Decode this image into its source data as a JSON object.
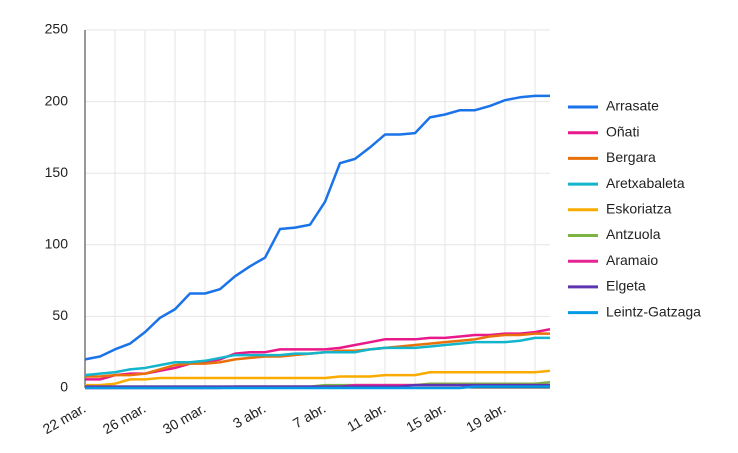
{
  "chart_data": {
    "type": "line",
    "categories": [
      "22 mar.",
      null,
      null,
      null,
      "26 mar.",
      null,
      null,
      null,
      "30 mar.",
      null,
      null,
      null,
      "3 abr.",
      null,
      null,
      null,
      "7 abr.",
      null,
      null,
      null,
      "11 abr.",
      null,
      null,
      null,
      "15 abr.",
      null,
      null,
      null,
      "19 abr.",
      null,
      null,
      null
    ],
    "ylim": [
      0,
      250
    ],
    "yticks": [
      0,
      50,
      100,
      150,
      200,
      250
    ],
    "grid": true,
    "legend": "right",
    "series": [
      {
        "name": "Arrasate",
        "color": "#1a73e8",
        "values": [
          20,
          22,
          27,
          31,
          39,
          49,
          55,
          66,
          66,
          69,
          78,
          85,
          91,
          111,
          112,
          114,
          130,
          157,
          160,
          168,
          177,
          177,
          178,
          189,
          191,
          194,
          194,
          197,
          201,
          203,
          204,
          204
        ]
      },
      {
        "name": "Oñati",
        "color": "#e8198b",
        "values": [
          6,
          6,
          9,
          10,
          10,
          12,
          14,
          17,
          18,
          20,
          24,
          25,
          25,
          27,
          27,
          27,
          27,
          28,
          30,
          32,
          34,
          34,
          34,
          35,
          35,
          36,
          37,
          37,
          38,
          38,
          39,
          41
        ]
      },
      {
        "name": "Bergara",
        "color": "#e8710a",
        "values": [
          8,
          8,
          9,
          9,
          10,
          13,
          16,
          17,
          17,
          18,
          20,
          21,
          22,
          22,
          23,
          24,
          25,
          26,
          26,
          27,
          28,
          29,
          30,
          31,
          32,
          33,
          34,
          36,
          37,
          37,
          38,
          38
        ]
      },
      {
        "name": "Aretxabaleta",
        "color": "#12b5cb",
        "values": [
          9,
          10,
          11,
          13,
          14,
          16,
          18,
          18,
          19,
          21,
          23,
          23,
          23,
          23,
          24,
          24,
          25,
          25,
          25,
          27,
          28,
          28,
          28,
          29,
          30,
          31,
          32,
          32,
          32,
          33,
          35,
          35
        ]
      },
      {
        "name": "Eskoriatza",
        "color": "#f9ab00",
        "values": [
          2,
          2,
          3,
          6,
          6,
          7,
          7,
          7,
          7,
          7,
          7,
          7,
          7,
          7,
          7,
          7,
          7,
          8,
          8,
          8,
          9,
          9,
          9,
          11,
          11,
          11,
          11,
          11,
          11,
          11,
          11,
          12
        ]
      },
      {
        "name": "Antzuola",
        "color": "#7cb342",
        "values": [
          1,
          1,
          1,
          1,
          1,
          1,
          1,
          1,
          1,
          1,
          1,
          1,
          1,
          1,
          1,
          1,
          2,
          2,
          2,
          2,
          2,
          2,
          2,
          3,
          3,
          3,
          3,
          3,
          3,
          3,
          3,
          4
        ]
      },
      {
        "name": "Aramaio",
        "color": "#e52592",
        "values": [
          0,
          0,
          0,
          0,
          0,
          0,
          0,
          0,
          0,
          0,
          1,
          1,
          1,
          1,
          1,
          1,
          1,
          1,
          2,
          2,
          2,
          2,
          2,
          2,
          2,
          2,
          2,
          2,
          2,
          2,
          2,
          2
        ]
      },
      {
        "name": "Elgeta",
        "color": "#5e35b1",
        "values": [
          1,
          1,
          1,
          1,
          1,
          1,
          1,
          1,
          1,
          1,
          1,
          1,
          1,
          1,
          1,
          1,
          1,
          1,
          1,
          1,
          1,
          1,
          2,
          2,
          2,
          2,
          2,
          2,
          2,
          2,
          2,
          2
        ]
      },
      {
        "name": "Leintz-Gatzaga",
        "color": "#039be5",
        "values": [
          0,
          0,
          0,
          0,
          0,
          0,
          0,
          0,
          0,
          0,
          0,
          0,
          0,
          0,
          0,
          0,
          0,
          0,
          0,
          0,
          0,
          0,
          0,
          0,
          0,
          0,
          1,
          1,
          1,
          1,
          1,
          1
        ]
      }
    ]
  }
}
